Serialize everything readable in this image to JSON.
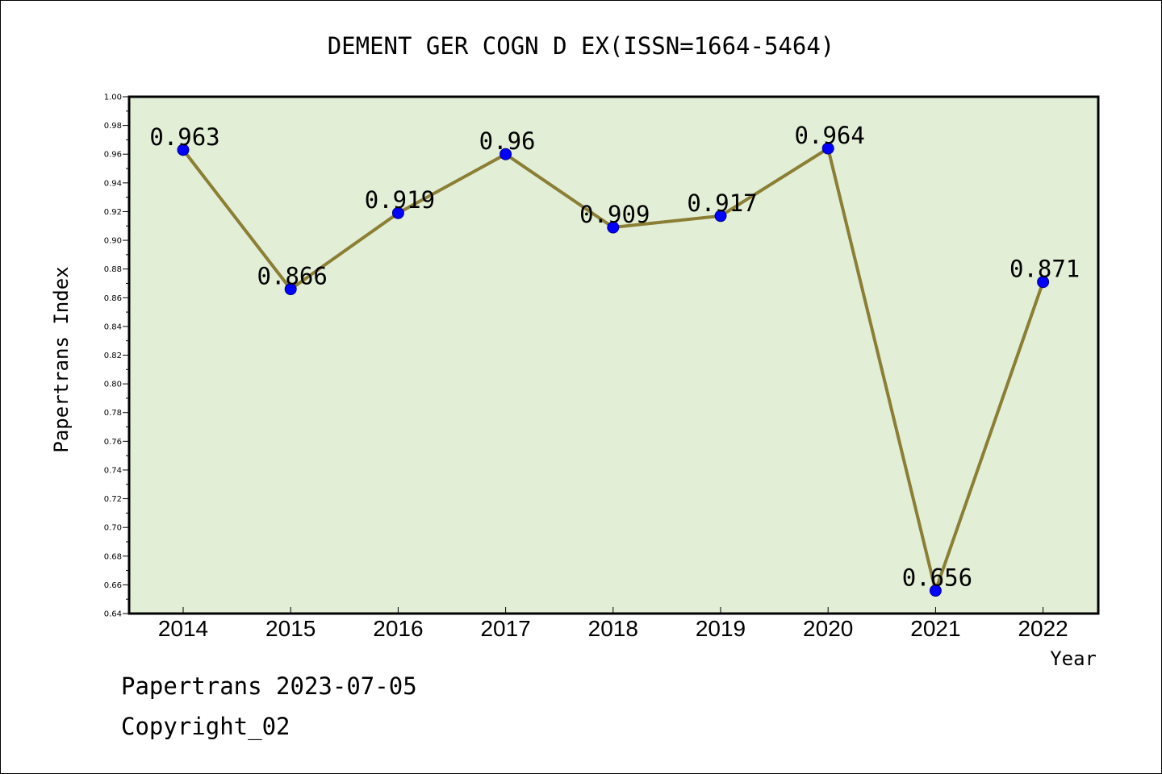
{
  "chart_data": {
    "type": "line",
    "title": "DEMENT GER COGN D EX(ISSN=1664-5464)",
    "xlabel": "Year",
    "ylabel": "Papertrans Index",
    "categories": [
      "2014",
      "2015",
      "2016",
      "2017",
      "2018",
      "2019",
      "2020",
      "2021",
      "2022"
    ],
    "series": [
      {
        "values": [
          0.963,
          0.866,
          0.919,
          0.96,
          0.909,
          0.917,
          0.964,
          0.656,
          0.871
        ],
        "data_labels": [
          "0.963",
          "0.866",
          "0.919",
          "0.96",
          "0.909",
          "0.917",
          "0.964",
          "0.656",
          "0.871"
        ],
        "line_color": "#8b7e35",
        "marker_color": "#0000ff"
      }
    ],
    "ylim": [
      0.64,
      1.0
    ],
    "yticks": [
      "0.64",
      "0.66",
      "0.68",
      "0.70",
      "0.72",
      "0.74",
      "0.76",
      "0.78",
      "0.80",
      "0.82",
      "0.84",
      "0.86",
      "0.88",
      "0.90",
      "0.92",
      "0.94",
      "0.96",
      "0.98",
      "1.00"
    ],
    "plot_background": "#e2efd6",
    "grid": false,
    "legend": "none"
  },
  "footer": {
    "line1": "Papertrans 2023-07-05",
    "line2": "Copyright_02"
  }
}
